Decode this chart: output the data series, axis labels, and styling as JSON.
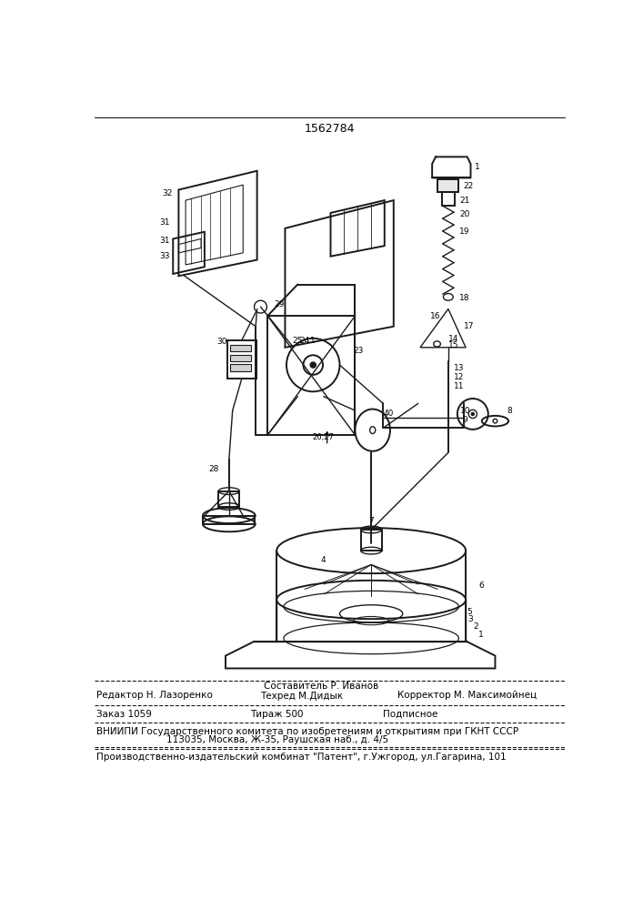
{
  "patent_number": "1562784",
  "line_color": "#1a1a1a",
  "footer_lines": [
    "Составитель Р. Иванов",
    "Редактор Н. Лазоренко",
    "Техред М.Дидык",
    "Корректор М. Максимойнец",
    "Заказ 1059",
    "Тираж 500",
    "Подписное",
    "ВНИИПИ Государственного комитета по изобретениям и открытиям при ГКНТ СССР",
    "113035, Москва, Ж-35, Раушская наб., д. 4/5",
    "Производственно-издательский комбинат \"Патент\", г.Ужгород, ул.Гагарина, 101"
  ]
}
